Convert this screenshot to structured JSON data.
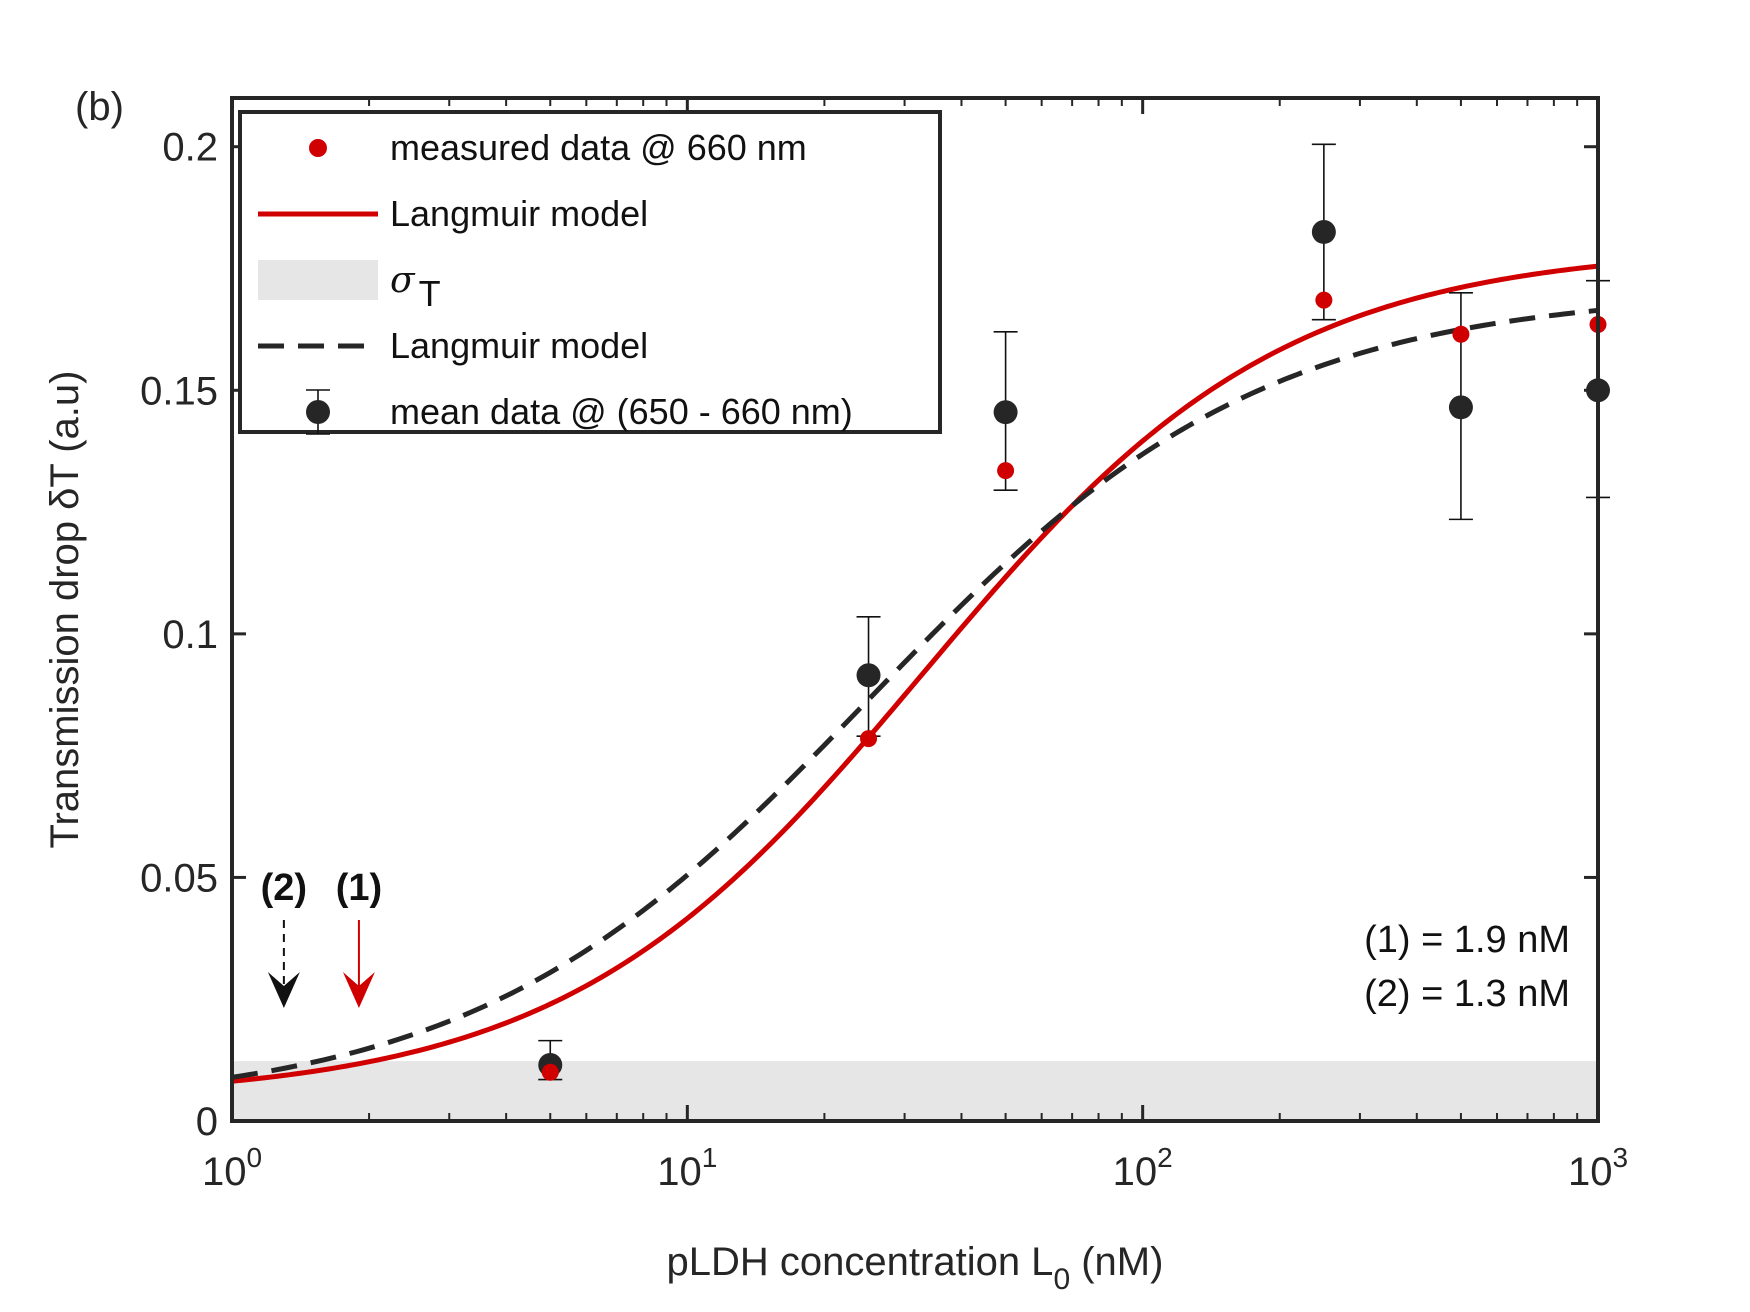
{
  "panel_label": "(b)",
  "chart_data": {
    "type": "scatter",
    "xlabel": "pLDH concentration L",
    "xlabel_sub": "0",
    "xlabel_unit": " (nM)",
    "ylabel": "Transmission drop δT (a.u)",
    "xscale": "log",
    "xlim": [
      1,
      1000
    ],
    "ylim": [
      0,
      0.21
    ],
    "x_ticks": [
      {
        "value": 1,
        "base": "10",
        "exp": "0"
      },
      {
        "value": 10,
        "base": "10",
        "exp": "1"
      },
      {
        "value": 100,
        "base": "10",
        "exp": "2"
      },
      {
        "value": 1000,
        "base": "10",
        "exp": "3"
      }
    ],
    "y_ticks": [
      {
        "value": 0,
        "label": "0"
      },
      {
        "value": 0.05,
        "label": "0.05"
      },
      {
        "value": 0.1,
        "label": "0.1"
      },
      {
        "value": 0.15,
        "label": "0.15"
      },
      {
        "value": 0.2,
        "label": "0.2"
      }
    ],
    "grid": false,
    "legend_position": "top-left",
    "legend": [
      {
        "label": "measured data @ 660 nm",
        "kind": "red-dot"
      },
      {
        "label": "Langmuir model",
        "kind": "red-line"
      },
      {
        "label": "σ",
        "sub": "T",
        "kind": "gray-band"
      },
      {
        "label": "Langmuir model",
        "kind": "black-dash"
      },
      {
        "label": "mean data @ (650 - 660 nm)",
        "kind": "black-dot-err"
      }
    ],
    "sigma_band": {
      "y": 0.0123,
      "color": "#e6e6e6"
    },
    "series": [
      {
        "kind": "measured",
        "color": "#d00000",
        "points": [
          {
            "x": 5,
            "y": 0.01
          },
          {
            "x": 25,
            "y": 0.0785
          },
          {
            "x": 50,
            "y": 0.1335
          },
          {
            "x": 250,
            "y": 0.1685
          },
          {
            "x": 500,
            "y": 0.1615
          },
          {
            "x": 1000,
            "y": 0.1635
          }
        ]
      },
      {
        "kind": "mean",
        "color": "#262626",
        "points": [
          {
            "x": 5,
            "y": 0.0115,
            "lo": 0.0085,
            "hi": 0.0165
          },
          {
            "x": 25,
            "y": 0.0915,
            "lo": 0.079,
            "hi": 0.1035
          },
          {
            "x": 50,
            "y": 0.1455,
            "lo": 0.1295,
            "hi": 0.162
          },
          {
            "x": 250,
            "y": 0.1825,
            "lo": 0.1645,
            "hi": 0.2005
          },
          {
            "x": 500,
            "y": 0.1465,
            "lo": 0.1235,
            "hi": 0.17
          },
          {
            "x": 1000,
            "y": 0.15,
            "lo": 0.128,
            "hi": 0.1725
          }
        ]
      },
      {
        "kind": "langmuir-red",
        "color": "#d00000",
        "curve": {
          "base": 0.0,
          "amp": 0.175,
          "k": 33.0,
          "n": 1.1,
          "offset": 0.0045
        }
      },
      {
        "kind": "langmuir-black",
        "color": "#262626",
        "curve": {
          "base": 0.0,
          "amp": 0.168,
          "k": 25.0,
          "n": 1.0,
          "offset": 0.0025
        }
      }
    ],
    "annotations": [
      {
        "label": "(2)",
        "x": 1.3,
        "color": "#111111",
        "style": "dashed"
      },
      {
        "label": "(1)",
        "x": 1.9,
        "color": "#d00000",
        "style": "solid"
      }
    ],
    "notes": [
      "(1) = 1.9 nM",
      "(2) = 1.3 nM"
    ]
  }
}
